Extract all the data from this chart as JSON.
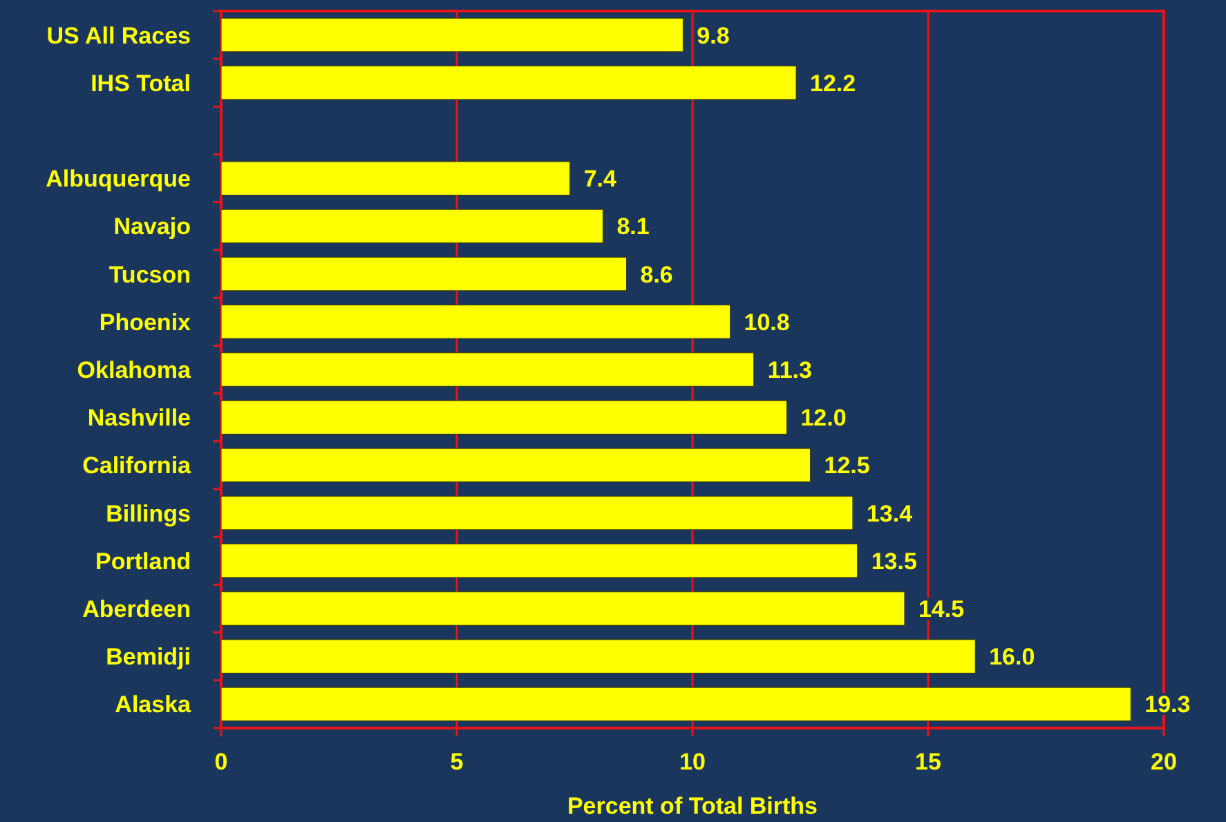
{
  "chart_data": {
    "type": "bar",
    "orientation": "horizontal",
    "xlabel": "Percent of Total Births",
    "categories": [
      "US All Races",
      "IHS Total",
      null,
      "Albuquerque",
      "Navajo",
      "Tucson",
      "Phoenix",
      "Oklahoma",
      "Nashville",
      "California",
      "Billings",
      "Portland",
      "Aberdeen",
      "Bemidji",
      "Alaska"
    ],
    "values": [
      9.8,
      12.2,
      null,
      7.4,
      8.1,
      8.6,
      10.8,
      11.3,
      12.0,
      12.5,
      13.4,
      13.5,
      14.5,
      16.0,
      19.3
    ],
    "value_labels": [
      "9.8",
      "12.2",
      null,
      "7.4",
      "8.1",
      "8.6",
      "10.8",
      "11.3",
      "12.0",
      "12.5",
      "13.4",
      "13.5",
      "14.5",
      "16.0",
      "19.3"
    ],
    "color": "#ffff00",
    "xlim": [
      0,
      20
    ],
    "xticks": [
      0,
      5,
      10,
      15,
      20
    ],
    "grid": "x"
  }
}
